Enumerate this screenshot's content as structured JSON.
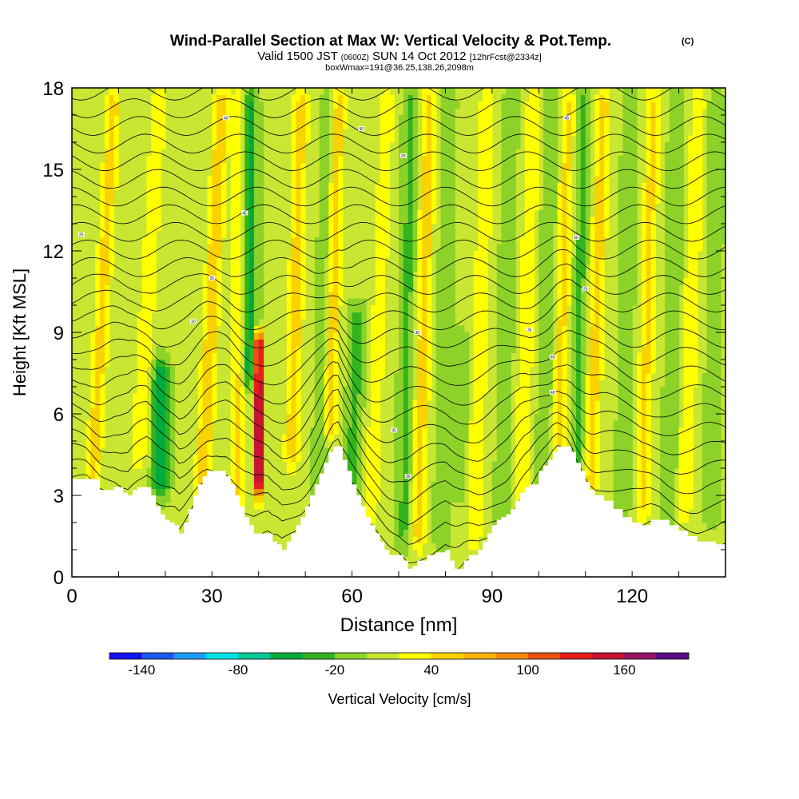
{
  "chart_data": {
    "type": "heatmap",
    "title": "Wind-Parallel Section at Max W: Vertical Velocity & Pot.Temp.",
    "title_mark": "(C)",
    "subtitle": {
      "prefix": "Valid 1500 JST",
      "utc": "(0600Z)",
      "date": "SUN 14 Oct 2012",
      "forecast": "[12hrFcst@2334z]"
    },
    "subtitle2": "boxWmax=191@36.25,138.26,2098m",
    "xlabel": "Distance [nm]",
    "ylabel": "Height [Kft MSL]",
    "xlim": [
      0,
      140
    ],
    "ylim": [
      0,
      18
    ],
    "x_ticks": [
      0,
      30,
      60,
      90,
      120
    ],
    "y_ticks": [
      0,
      3,
      6,
      9,
      12,
      15,
      18
    ],
    "colorbar": {
      "label": "Vertical Velocity [cm/s]",
      "min": -160,
      "max": 200,
      "step": 20,
      "tick_labels": [
        -140,
        -80,
        -20,
        40,
        100,
        160
      ],
      "colors": [
        "#1414f0",
        "#1e5af5",
        "#1e9bf5",
        "#00e1e1",
        "#00c896",
        "#00aa3c",
        "#32b41e",
        "#8cd228",
        "#c8e632",
        "#ffff00",
        "#fad200",
        "#f5b400",
        "#f08c00",
        "#eb5014",
        "#e61e1e",
        "#c81432",
        "#961464",
        "#5a0a8c"
      ]
    },
    "contour_labels": [
      "25",
      "30",
      "35",
      "40",
      "45",
      "50"
    ],
    "terrain_kft": [
      [
        0,
        3.6
      ],
      [
        3,
        3.6
      ],
      [
        6,
        3.2
      ],
      [
        9,
        3.3
      ],
      [
        11,
        3.1
      ],
      [
        12,
        3.0
      ],
      [
        13,
        3.2
      ],
      [
        14,
        3.3
      ],
      [
        16,
        3.3
      ],
      [
        17,
        3.0
      ],
      [
        18,
        2.6
      ],
      [
        19,
        2.3
      ],
      [
        20,
        2.1
      ],
      [
        21,
        2.0
      ],
      [
        22,
        1.9
      ],
      [
        23,
        1.6
      ],
      [
        24,
        2.0
      ],
      [
        25,
        2.5
      ],
      [
        26,
        3.0
      ],
      [
        27,
        3.4
      ],
      [
        28,
        3.7
      ],
      [
        29,
        3.9
      ],
      [
        31,
        3.9
      ],
      [
        33,
        3.7
      ],
      [
        34,
        3.4
      ],
      [
        35,
        3.0
      ],
      [
        36,
        2.6
      ],
      [
        37,
        2.2
      ],
      [
        38,
        1.9
      ],
      [
        39,
        1.6
      ],
      [
        40,
        1.6
      ],
      [
        42,
        1.6
      ],
      [
        43,
        1.3
      ],
      [
        44,
        1.2
      ],
      [
        45,
        1.0
      ],
      [
        46,
        1.3
      ],
      [
        47,
        1.6
      ],
      [
        48,
        1.9
      ],
      [
        49,
        2.2
      ],
      [
        50,
        2.6
      ],
      [
        51,
        3.0
      ],
      [
        52,
        3.4
      ],
      [
        53,
        3.8
      ],
      [
        54,
        4.2
      ],
      [
        55,
        4.6
      ],
      [
        56,
        4.8
      ],
      [
        57,
        4.8
      ],
      [
        58,
        4.3
      ],
      [
        59,
        3.9
      ],
      [
        60,
        3.4
      ],
      [
        61,
        3.0
      ],
      [
        62,
        2.6
      ],
      [
        63,
        2.2
      ],
      [
        64,
        1.9
      ],
      [
        65,
        1.6
      ],
      [
        66,
        1.3
      ],
      [
        67,
        1.0
      ],
      [
        68,
        0.8
      ],
      [
        70,
        0.8
      ],
      [
        71,
        0.6
      ],
      [
        72,
        0.3
      ],
      [
        73,
        0.4
      ],
      [
        74,
        0.6
      ],
      [
        76,
        0.8
      ],
      [
        78,
        0.9
      ],
      [
        80,
        1.0
      ],
      [
        81,
        0.6
      ],
      [
        82,
        0.3
      ],
      [
        83,
        0.3
      ],
      [
        84,
        0.6
      ],
      [
        85,
        0.8
      ],
      [
        87,
        1.0
      ],
      [
        88,
        1.3
      ],
      [
        89,
        1.6
      ],
      [
        90,
        1.9
      ],
      [
        91,
        2.1
      ],
      [
        92,
        2.2
      ],
      [
        93,
        2.3
      ],
      [
        94,
        2.5
      ],
      [
        95,
        2.8
      ],
      [
        96,
        3.1
      ],
      [
        97,
        3.3
      ],
      [
        98,
        3.4
      ],
      [
        100,
        3.9
      ],
      [
        101,
        4.1
      ],
      [
        102,
        4.3
      ],
      [
        103,
        4.6
      ],
      [
        104,
        4.8
      ],
      [
        106,
        4.8
      ],
      [
        107,
        4.6
      ],
      [
        108,
        4.2
      ],
      [
        109,
        3.9
      ],
      [
        110,
        3.5
      ],
      [
        111,
        3.2
      ],
      [
        112,
        3.0
      ],
      [
        114,
        2.8
      ],
      [
        116,
        2.5
      ],
      [
        118,
        2.2
      ],
      [
        120,
        2.0
      ],
      [
        122,
        1.9
      ],
      [
        124,
        2.1
      ],
      [
        126,
        2.1
      ],
      [
        128,
        1.9
      ],
      [
        130,
        1.7
      ],
      [
        132,
        1.5
      ],
      [
        134,
        1.3
      ],
      [
        136,
        1.3
      ],
      [
        138,
        1.2
      ],
      [
        140,
        1.2
      ]
    ]
  }
}
